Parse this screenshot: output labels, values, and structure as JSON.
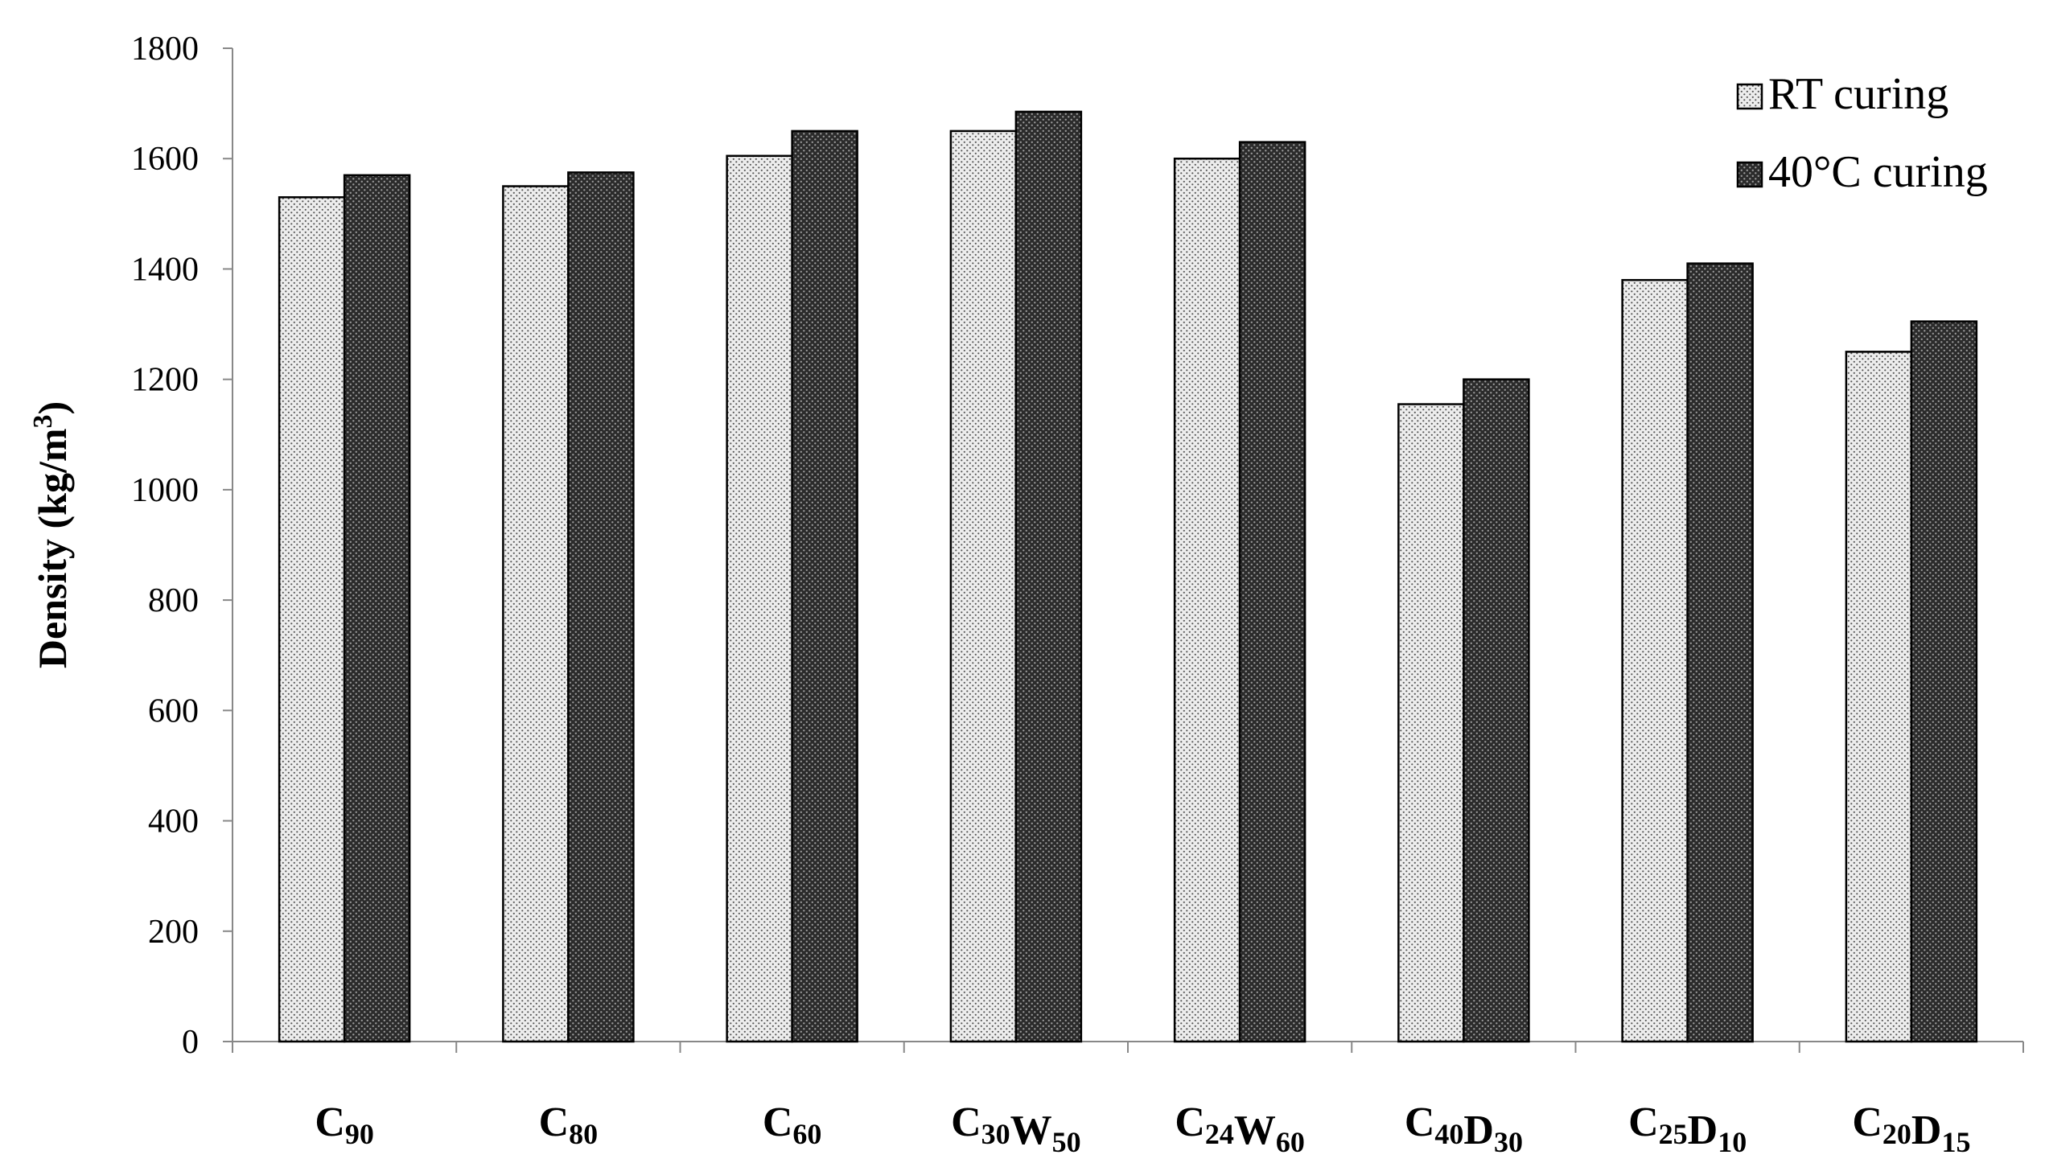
{
  "chart_data": {
    "type": "bar",
    "title": "",
    "xlabel": "",
    "ylabel": "Density (kg/m3)",
    "ylabel_parts": {
      "main": "Density (kg/m",
      "sup": "3",
      "tail": ")"
    },
    "ylim": [
      0,
      1800
    ],
    "yticks": [
      0,
      200,
      400,
      600,
      800,
      1000,
      1200,
      1400,
      1600,
      1800
    ],
    "grid": false,
    "legend_position": "top-right",
    "categories": [
      "C90",
      "C80",
      "C60",
      "C30W50",
      "C24W60",
      "C40D30",
      "C25D10",
      "C20D15"
    ],
    "category_parts": [
      [
        {
          "t": "C",
          "s": "90"
        }
      ],
      [
        {
          "t": "C",
          "s": "80"
        }
      ],
      [
        {
          "t": "C",
          "s": "60"
        }
      ],
      [
        {
          "t": "C",
          "s": "30"
        },
        {
          "t": "W",
          "s": "50"
        }
      ],
      [
        {
          "t": "C",
          "s": "24"
        },
        {
          "t": "W",
          "s": "60"
        }
      ],
      [
        {
          "t": "C",
          "s": "40"
        },
        {
          "t": "D",
          "s": "30"
        }
      ],
      [
        {
          "t": "C",
          "s": "25"
        },
        {
          "t": "D",
          "s": "10"
        }
      ],
      [
        {
          "t": "C",
          "s": "20"
        },
        {
          "t": "D",
          "s": "15"
        }
      ]
    ],
    "series": [
      {
        "name": "RT curing",
        "pattern": "light-dots",
        "values": [
          1530,
          1550,
          1605,
          1650,
          1600,
          1155,
          1380,
          1250
        ]
      },
      {
        "name": "40°C curing",
        "pattern": "dark-dots",
        "values": [
          1570,
          1575,
          1650,
          1685,
          1630,
          1200,
          1410,
          1305
        ]
      }
    ]
  }
}
